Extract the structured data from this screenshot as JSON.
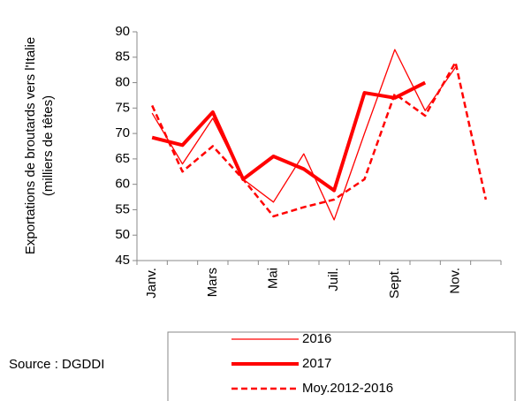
{
  "chart_data": {
    "type": "line",
    "y_label": [
      "Exportations de broutards vers l'Italie",
      "(milliers de têtes)"
    ],
    "categories": [
      "Janv.",
      null,
      "Mars",
      null,
      "Mai",
      null,
      "Juil.",
      null,
      "Sept.",
      null,
      "Nov.",
      null
    ],
    "series": [
      {
        "name": "2016",
        "color": "#ff0000",
        "values": [
          74,
          64,
          73,
          61,
          56.5,
          66,
          53,
          70,
          86.5,
          74.5,
          83,
          null
        ]
      },
      {
        "name": "2017",
        "color": "#ff0000",
        "values": [
          69.2,
          67.7,
          74.2,
          61,
          65.5,
          63,
          58.8,
          78,
          77,
          80,
          null,
          null
        ]
      },
      {
        "name": "Moy.2012-2016",
        "color": "#ff0000",
        "values": [
          75.5,
          62.5,
          67.5,
          61,
          53.7,
          55.5,
          57,
          61,
          77.8,
          73.5,
          84,
          57
        ]
      }
    ],
    "ylim": [
      45,
      90
    ],
    "yticks": [
      45,
      50,
      55,
      60,
      65,
      70,
      75,
      80,
      85,
      90
    ],
    "source": "Source : DGDDI"
  }
}
